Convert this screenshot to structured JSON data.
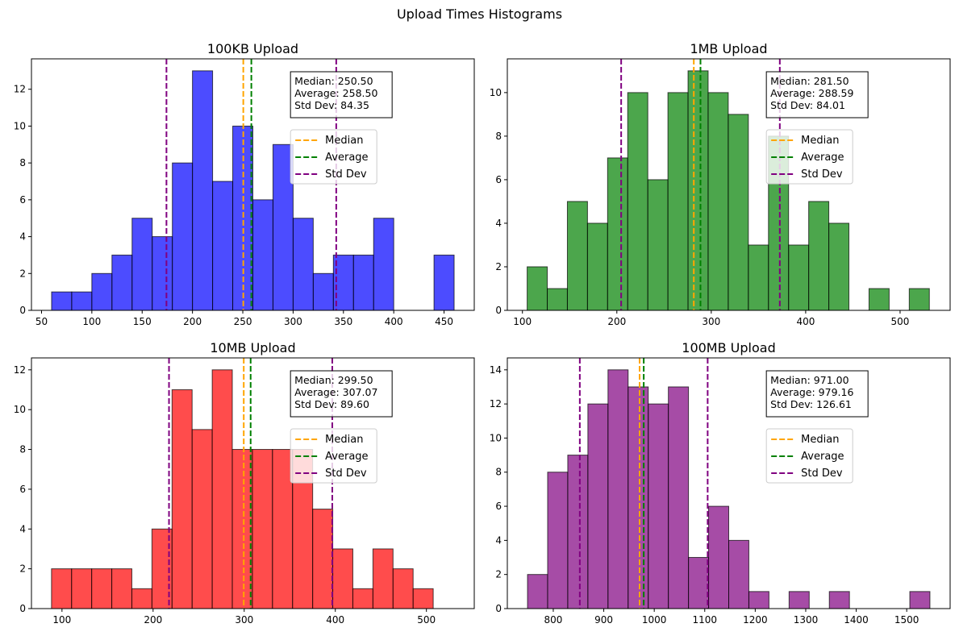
{
  "suptitle": "Upload Times Histograms",
  "legend_labels": {
    "median": "Median",
    "average": "Average",
    "stddev": "Std Dev"
  },
  "line_colors": {
    "median": "#FFA500",
    "average": "#008000",
    "stddev": "#800080"
  },
  "chart_data": [
    {
      "type": "bar",
      "histogram": true,
      "title": "100KB Upload",
      "color": "#0000FF",
      "bins": {
        "start": 60,
        "width": 20
      },
      "values": [
        1,
        1,
        2,
        3,
        5,
        4,
        8,
        13,
        7,
        10,
        6,
        9,
        5,
        2,
        3,
        3,
        5,
        0,
        0,
        3
      ],
      "xlim": [
        40,
        480
      ],
      "ylim": [
        0,
        13.65
      ],
      "xticks": [
        50,
        100,
        150,
        200,
        250,
        300,
        350,
        400,
        450
      ],
      "yticks": [
        0,
        2,
        4,
        6,
        8,
        10,
        12
      ],
      "stats": {
        "median": 250.5,
        "average": 258.5,
        "std_dev": 84.35
      },
      "stats_text": [
        "Median: 250.50",
        "Average: 258.50",
        "Std Dev: 84.35"
      ],
      "std_lines": [
        174.15,
        342.85
      ],
      "legend": "right"
    },
    {
      "type": "bar",
      "histogram": true,
      "title": "1MB Upload",
      "color": "#008000",
      "bins": {
        "start": 105,
        "width": 21.3
      },
      "values": [
        2,
        1,
        5,
        4,
        7,
        10,
        6,
        10,
        11,
        10,
        9,
        3,
        8,
        3,
        5,
        4,
        0,
        1,
        0,
        1
      ],
      "xlim": [
        84,
        553
      ],
      "ylim": [
        0,
        11.55
      ],
      "xticks": [
        100,
        200,
        300,
        400,
        500
      ],
      "yticks": [
        0,
        2,
        4,
        6,
        8,
        10
      ],
      "stats": {
        "median": 281.5,
        "average": 288.59,
        "std_dev": 84.01
      },
      "stats_text": [
        "Median: 281.50",
        "Average: 288.59",
        "Std Dev: 84.01"
      ],
      "std_lines": [
        204.58,
        372.6
      ],
      "legend": "right"
    },
    {
      "type": "bar",
      "histogram": true,
      "title": "10MB Upload",
      "color": "#FF0000",
      "bins": {
        "start": 88.5,
        "width": 22.05
      },
      "values": [
        2,
        2,
        2,
        2,
        1,
        4,
        11,
        9,
        12,
        8,
        8,
        8,
        8,
        5,
        3,
        1,
        3,
        2,
        1
      ],
      "xlim": [
        66.5,
        552.5
      ],
      "ylim": [
        0,
        12.6
      ],
      "xticks": [
        100,
        200,
        300,
        400,
        500
      ],
      "yticks": [
        0,
        2,
        4,
        6,
        8,
        10,
        12
      ],
      "stats": {
        "median": 299.5,
        "average": 307.07,
        "std_dev": 89.6
      },
      "stats_text": [
        "Median: 299.50",
        "Average: 307.07",
        "Std Dev: 89.60"
      ],
      "std_lines": [
        217.47,
        396.67
      ],
      "legend": "right"
    },
    {
      "type": "bar",
      "histogram": true,
      "title": "100MB Upload",
      "color": "#800080",
      "bins": {
        "start": 749,
        "width": 39.85
      },
      "values": [
        2,
        8,
        9,
        12,
        14,
        13,
        12,
        13,
        3,
        6,
        4,
        1,
        0,
        1,
        0,
        1,
        0,
        0,
        0,
        1
      ],
      "xlim": [
        709,
        1586
      ],
      "ylim": [
        0,
        14.7
      ],
      "xticks": [
        800,
        900,
        1000,
        1100,
        1200,
        1300,
        1400,
        1500
      ],
      "yticks": [
        0,
        2,
        4,
        6,
        8,
        10,
        12,
        14
      ],
      "stats": {
        "median": 971.0,
        "average": 979.16,
        "std_dev": 126.61
      },
      "stats_text": [
        "Median: 971.00",
        "Average: 979.16",
        "Std Dev: 126.61"
      ],
      "std_lines": [
        852.55,
        1105.77
      ],
      "legend": "right"
    }
  ]
}
